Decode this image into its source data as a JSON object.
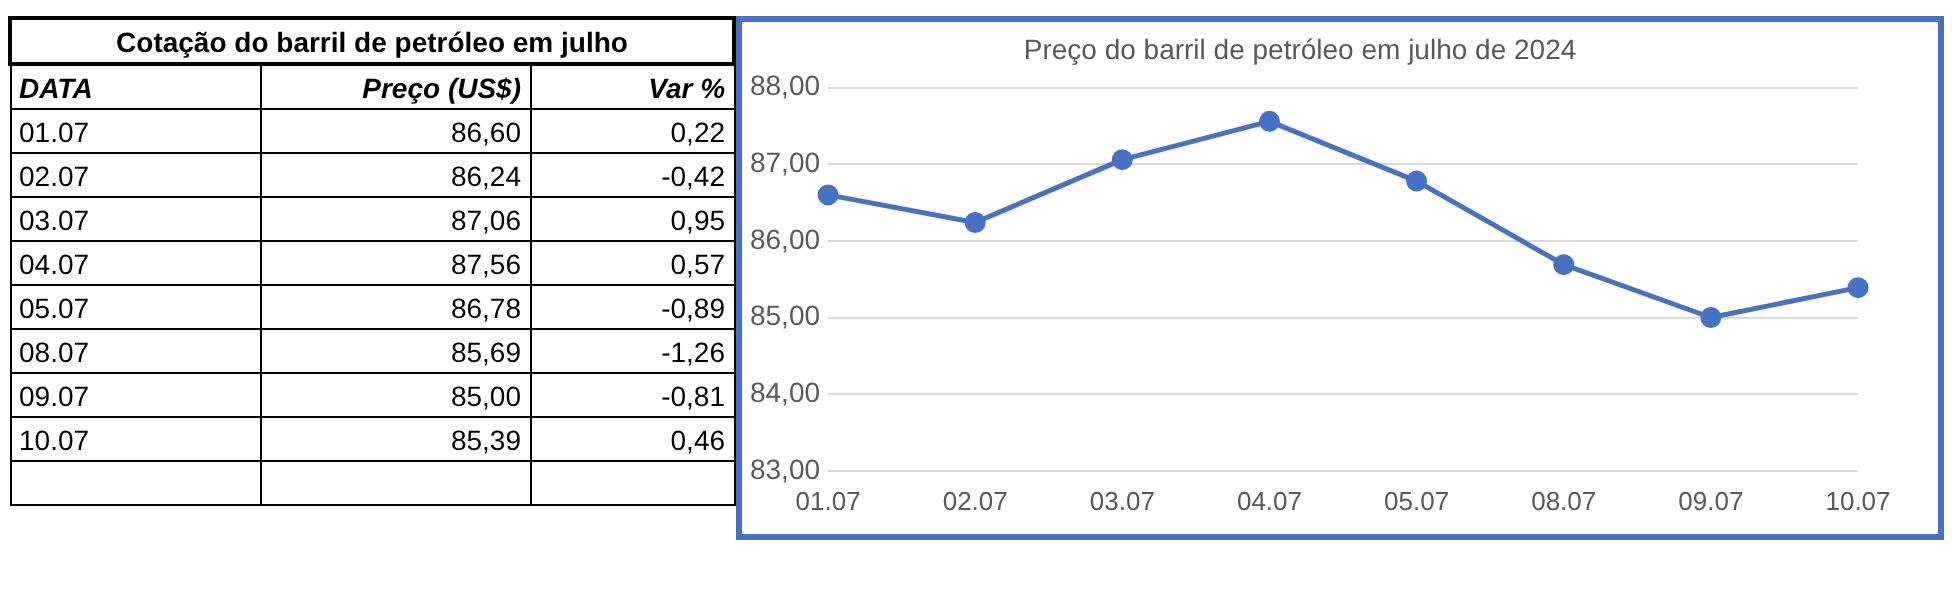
{
  "chart_data": [
    {
      "type": "other",
      "title": "Cotação do barril de petróleo em julho",
      "xlabel": "DATA",
      "categories": [
        "01.07",
        "02.07",
        "03.07",
        "04.07",
        "05.07",
        "08.07",
        "09.07",
        "10.07"
      ],
      "series": [
        {
          "name": "Preço (US$)",
          "values": [
            86.6,
            86.24,
            87.06,
            87.56,
            86.78,
            85.69,
            85.0,
            85.39
          ],
          "value_labels": [
            "86,60",
            "86,24",
            "87,06",
            "87,56",
            "86,78",
            "85,69",
            "85,00",
            "85,39"
          ]
        },
        {
          "name": "Var %",
          "values": [
            0.22,
            -0.42,
            0.95,
            0.57,
            -0.89,
            -1.26,
            -0.81,
            0.46
          ],
          "value_labels": [
            "0,22",
            "-0,42",
            "0,95",
            "0,57",
            "-0,89",
            "-1,26",
            "-0,81",
            "0,46"
          ]
        }
      ]
    },
    {
      "type": "line",
      "title": "Preço do barril de petróleo em julho de 2024",
      "categories": [
        "01.07",
        "02.07",
        "03.07",
        "04.07",
        "05.07",
        "08.07",
        "09.07",
        "10.07"
      ],
      "series": [
        {
          "color": "#4472c4",
          "values": [
            86.6,
            86.24,
            87.06,
            87.56,
            86.78,
            85.69,
            85.0,
            85.39
          ]
        }
      ],
      "ylim": [
        83,
        88
      ],
      "yticks": [
        {
          "value": 83,
          "label": "83,00"
        },
        {
          "value": 84,
          "label": "84,00"
        },
        {
          "value": 85,
          "label": "85,00"
        },
        {
          "value": 86,
          "label": "86,00"
        },
        {
          "value": 87,
          "label": "87,00"
        },
        {
          "value": 88,
          "label": "88,00"
        }
      ],
      "grid": "y",
      "legend": false,
      "marker": "circle",
      "line_style": "solid"
    }
  ]
}
